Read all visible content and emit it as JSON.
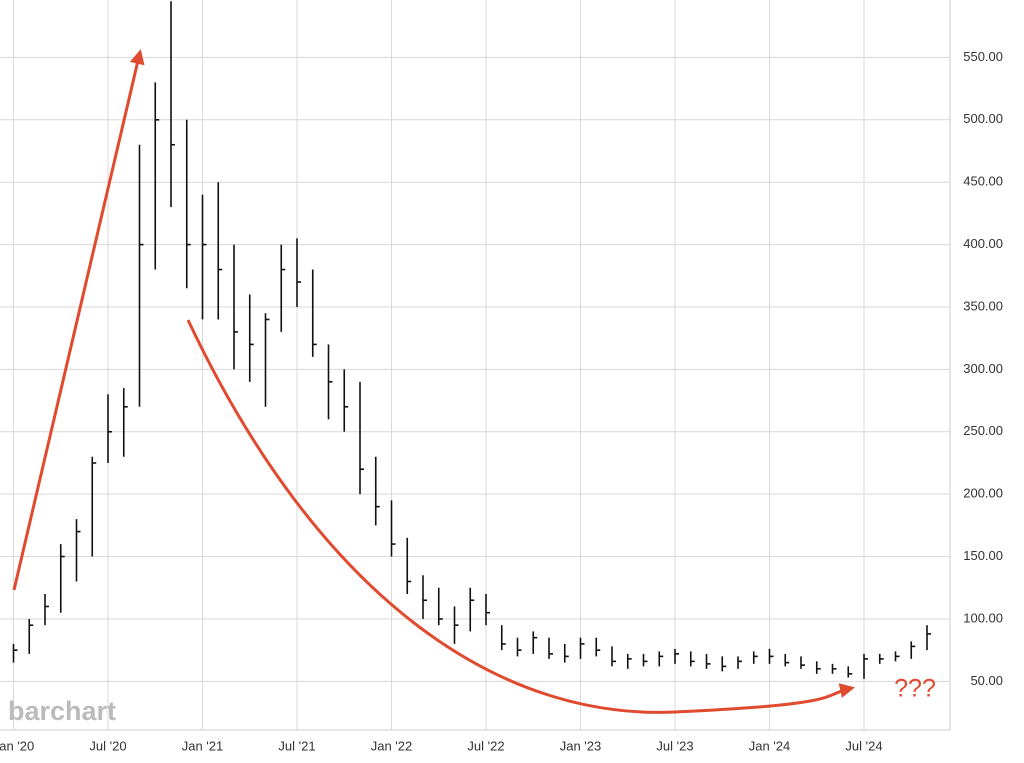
{
  "chart_data": {
    "type": "ohlc",
    "x": [
      "2020-01",
      "2020-02",
      "2020-03",
      "2020-04",
      "2020-05",
      "2020-06",
      "2020-07",
      "2020-08",
      "2020-09",
      "2020-10",
      "2020-11",
      "2020-12",
      "2021-01",
      "2021-02",
      "2021-03",
      "2021-04",
      "2021-05",
      "2021-06",
      "2021-07",
      "2021-08",
      "2021-09",
      "2021-10",
      "2021-11",
      "2021-12",
      "2022-01",
      "2022-02",
      "2022-03",
      "2022-04",
      "2022-05",
      "2022-06",
      "2022-07",
      "2022-08",
      "2022-09",
      "2022-10",
      "2022-11",
      "2022-12",
      "2023-01",
      "2023-02",
      "2023-03",
      "2023-04",
      "2023-05",
      "2023-06",
      "2023-07",
      "2023-08",
      "2023-09",
      "2023-10",
      "2023-11",
      "2023-12",
      "2024-01",
      "2024-02",
      "2024-03",
      "2024-04",
      "2024-05",
      "2024-06",
      "2024-07",
      "2024-08",
      "2024-09",
      "2024-10",
      "2024-11"
    ],
    "high": [
      80,
      100,
      120,
      160,
      180,
      230,
      280,
      285,
      480,
      530,
      595,
      500,
      440,
      450,
      400,
      360,
      345,
      400,
      405,
      380,
      320,
      300,
      290,
      230,
      195,
      165,
      135,
      125,
      110,
      125,
      120,
      95,
      85,
      90,
      85,
      80,
      85,
      85,
      78,
      72,
      72,
      74,
      76,
      74,
      72,
      70,
      70,
      74,
      76,
      72,
      70,
      66,
      64,
      62,
      72,
      72,
      74,
      82,
      95
    ],
    "low": [
      65,
      72,
      95,
      105,
      130,
      150,
      225,
      230,
      270,
      380,
      430,
      365,
      340,
      340,
      300,
      290,
      270,
      330,
      350,
      310,
      260,
      250,
      200,
      175,
      150,
      120,
      100,
      95,
      80,
      90,
      95,
      75,
      70,
      72,
      68,
      65,
      68,
      70,
      62,
      60,
      62,
      62,
      64,
      62,
      60,
      58,
      60,
      64,
      64,
      62,
      60,
      56,
      56,
      53,
      52,
      64,
      66,
      68,
      75
    ],
    "close": [
      75,
      95,
      110,
      150,
      170,
      225,
      250,
      270,
      400,
      500,
      480,
      400,
      400,
      380,
      330,
      320,
      340,
      380,
      370,
      320,
      290,
      270,
      220,
      190,
      160,
      130,
      115,
      100,
      95,
      115,
      105,
      80,
      75,
      85,
      72,
      70,
      80,
      75,
      66,
      68,
      66,
      70,
      72,
      66,
      64,
      62,
      66,
      70,
      70,
      65,
      63,
      60,
      60,
      56,
      68,
      68,
      70,
      78,
      88
    ],
    "color": "#111111",
    "ylim": [
      11,
      596
    ],
    "yticks": [
      {
        "value": 50,
        "label": "50.00"
      },
      {
        "value": 100,
        "label": "100.00"
      },
      {
        "value": 150,
        "label": "150.00"
      },
      {
        "value": 200,
        "label": "200.00"
      },
      {
        "value": 250,
        "label": "250.00"
      },
      {
        "value": 300,
        "label": "300.00"
      },
      {
        "value": 350,
        "label": "350.00"
      },
      {
        "value": 400,
        "label": "400.00"
      },
      {
        "value": 450,
        "label": "450.00"
      },
      {
        "value": 500,
        "label": "500.00"
      },
      {
        "value": 550,
        "label": "550.00"
      }
    ],
    "xticks": [
      {
        "value": "2020-01",
        "label": "Jan '20"
      },
      {
        "value": "2020-07",
        "label": "Jul '20"
      },
      {
        "value": "2021-01",
        "label": "Jan '21"
      },
      {
        "value": "2021-07",
        "label": "Jul '21"
      },
      {
        "value": "2022-01",
        "label": "Jan '22"
      },
      {
        "value": "2022-07",
        "label": "Jul '22"
      },
      {
        "value": "2023-01",
        "label": "Jan '23"
      },
      {
        "value": "2023-07",
        "label": "Jul '23"
      },
      {
        "value": "2024-01",
        "label": "Jan '24"
      },
      {
        "value": "2024-07",
        "label": "Jul '24"
      }
    ],
    "grid": true,
    "annotation": "???",
    "watermark": "barchart"
  }
}
